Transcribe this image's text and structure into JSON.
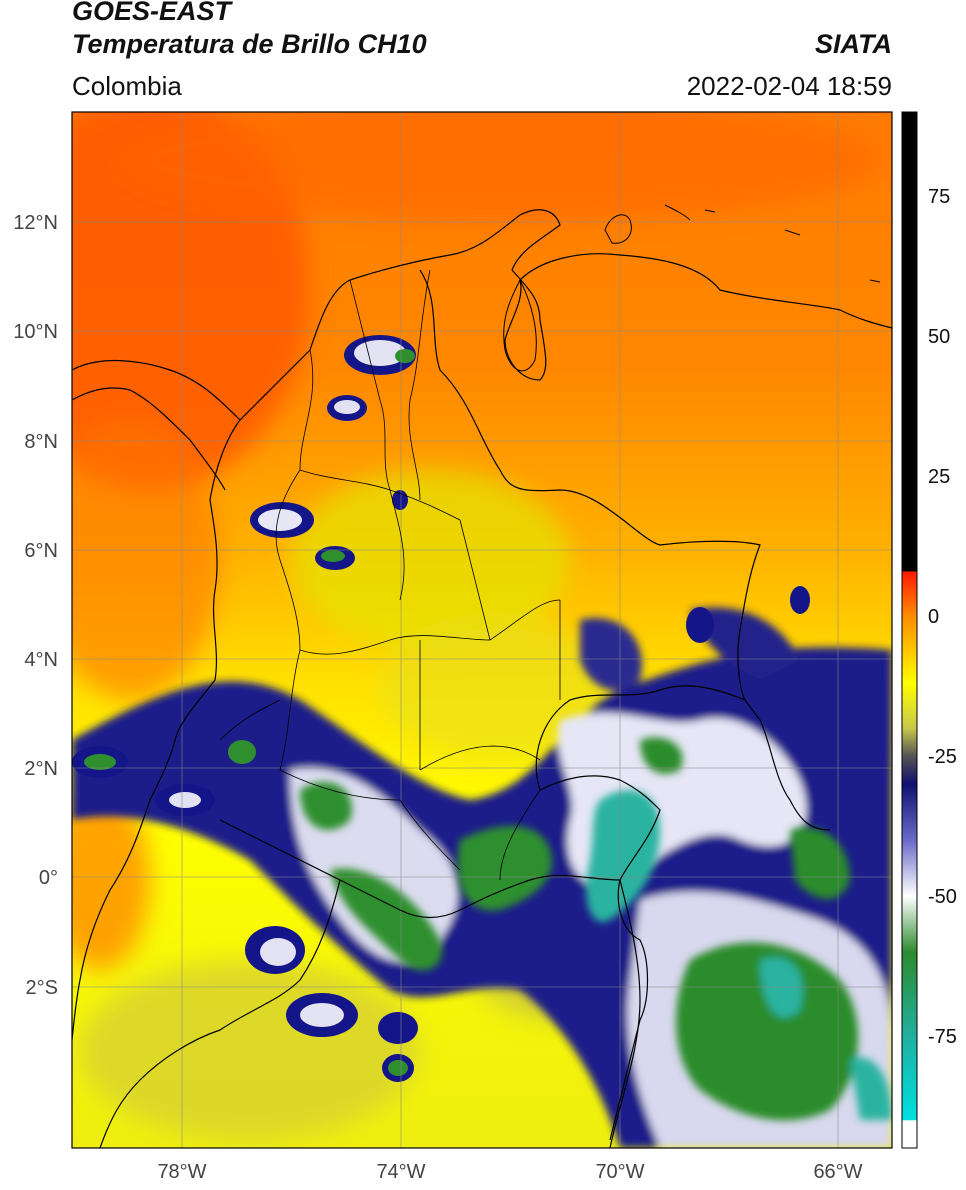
{
  "header": {
    "satellite": "GOES-EAST",
    "product": "Temperatura de Brillo CH10",
    "region": "Colombia",
    "agency": "SIATA",
    "timestamp": "2022-02-04 18:59"
  },
  "axes": {
    "lat_ticks": [
      "12°N",
      "10°N",
      "8°N",
      "6°N",
      "4°N",
      "2°N",
      "0°",
      "2°S"
    ],
    "lon_ticks": [
      "78°W",
      "74°W",
      "70°W",
      "66°W"
    ]
  },
  "colorbar": {
    "tick_labels": [
      "75",
      "50",
      "25",
      "0",
      "-25",
      "-50",
      "-75"
    ],
    "range": [
      -95,
      90
    ],
    "stops": [
      {
        "value": 90,
        "color": "#000000"
      },
      {
        "value": 8,
        "color": "#000000"
      },
      {
        "value": 7.9,
        "color": "#ff1a00"
      },
      {
        "value": 0,
        "color": "#ff8c00"
      },
      {
        "value": -12,
        "color": "#ffff00"
      },
      {
        "value": -20,
        "color": "#c8c84a"
      },
      {
        "value": -25,
        "color": "#555555"
      },
      {
        "value": -30,
        "color": "#101070"
      },
      {
        "value": -40,
        "color": "#6a6ac8"
      },
      {
        "value": -50,
        "color": "#ffffff"
      },
      {
        "value": -60,
        "color": "#2e8b2e"
      },
      {
        "value": -75,
        "color": "#20b0a0"
      },
      {
        "value": -90,
        "color": "#00e0e0"
      },
      {
        "value": -90.1,
        "color": "#ffffff"
      },
      {
        "value": -95,
        "color": "#ffffff"
      }
    ]
  },
  "colors": {
    "warm": "#ff6a00",
    "mid": "#ffd000",
    "cold_dark": "#151585",
    "cold_light": "#ffffff",
    "very_cold": "#2a8a2a",
    "coldest": "#2abba5"
  }
}
